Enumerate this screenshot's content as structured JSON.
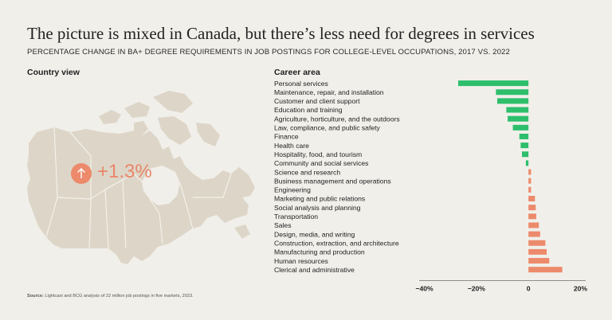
{
  "title": "The picture is mixed in Canada, but there’s less need for degrees in services",
  "subtitle": "PERCENTAGE CHANGE IN BA+ DEGREE REQUIREMENTS IN JOB POSTINGS FOR COLLEGE-LEVEL OCCUPATIONS, 2017 VS. 2022",
  "country_view": {
    "heading": "Country view",
    "value": "+1.3%",
    "icon": "up-arrow-icon"
  },
  "source": {
    "label": "Source:",
    "text": " Lightcast and BCG analysis of 22 million job postings in five markets, 2023."
  },
  "colors": {
    "negative": "#2dbf6c",
    "positive": "#ec8a6b",
    "map": "#ddd6c8"
  },
  "chart_data": {
    "type": "bar",
    "orientation": "horizontal",
    "ylabel": "Career area",
    "categories": [
      "Personal services",
      "Maintenance, repair, and installation",
      "Customer and client support",
      "Education and training",
      "Agriculture, horticulture, and the outdoors",
      "Law, compliance, and public safety",
      "Finance",
      "Health care",
      "Hospitality, food, and tourism",
      "Community and social services",
      "Science and research",
      "Business management and operations",
      "Engineering",
      "Marketing and public relations",
      "Social analysis and planning",
      "Transportation",
      "Sales",
      "Design, media, and writing",
      "Construction, extraction, and architecture",
      "Manufacturing and production",
      "Human resources",
      "Clerical and administrative"
    ],
    "values": [
      -27,
      -12.5,
      -12,
      -8.5,
      -8,
      -6,
      -3.5,
      -3,
      -2.5,
      -1,
      1,
      1,
      1,
      2.5,
      2.8,
      3,
      4,
      4.5,
      6.5,
      7,
      8,
      13
    ],
    "xlim": [
      -42,
      22
    ],
    "xticks": [
      -40,
      -20,
      0,
      20
    ],
    "xtick_labels": [
      "−40%",
      "−20%",
      "0",
      "20%"
    ],
    "grid": false
  }
}
